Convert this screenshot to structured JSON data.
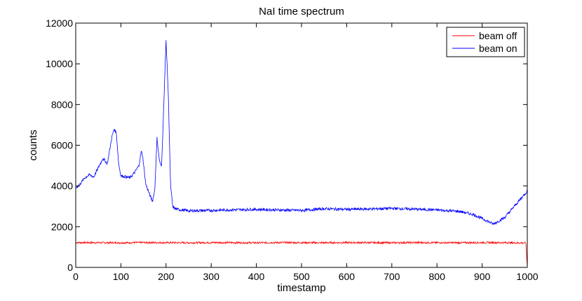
{
  "chart_data": {
    "type": "line",
    "title": "NaI time spectrum",
    "xlabel": "timestamp",
    "ylabel": "counts",
    "xlim": [
      0,
      1000
    ],
    "ylim": [
      0,
      12000
    ],
    "xticks": [
      0,
      100,
      200,
      300,
      400,
      500,
      600,
      700,
      800,
      900,
      1000
    ],
    "yticks": [
      0,
      2000,
      4000,
      6000,
      8000,
      10000,
      12000
    ],
    "xtick_labels": [
      "0",
      "100",
      "200",
      "300",
      "400",
      "500",
      "600",
      "700",
      "800",
      "900",
      "1000"
    ],
    "ytick_labels": [
      "0",
      "2000",
      "4000",
      "6000",
      "8000",
      "10000",
      "12000"
    ],
    "grid": false,
    "legend_position": "top-right",
    "series": [
      {
        "name": "beam off",
        "color": "#ff0000",
        "x": [
          0,
          50,
          100,
          150,
          200,
          250,
          300,
          350,
          400,
          450,
          500,
          550,
          600,
          650,
          700,
          750,
          800,
          850,
          900,
          950,
          997,
          1000
        ],
        "y": [
          1220,
          1215,
          1210,
          1220,
          1215,
          1210,
          1220,
          1215,
          1210,
          1220,
          1215,
          1210,
          1220,
          1215,
          1210,
          1220,
          1215,
          1210,
          1220,
          1215,
          1200,
          0
        ]
      },
      {
        "name": "beam on",
        "color": "#0000ff",
        "x": [
          0,
          10,
          20,
          30,
          40,
          50,
          60,
          70,
          80,
          85,
          90,
          95,
          100,
          110,
          120,
          130,
          140,
          145,
          148,
          155,
          165,
          170,
          175,
          180,
          185,
          190,
          195,
          200,
          205,
          210,
          215,
          225,
          250,
          300,
          350,
          400,
          450,
          500,
          550,
          600,
          650,
          700,
          750,
          800,
          850,
          880,
          900,
          925,
          950,
          975,
          1000,
          1001
        ],
        "y": [
          3900,
          4100,
          4400,
          4550,
          4450,
          4900,
          5350,
          5100,
          6400,
          6800,
          6600,
          5100,
          4500,
          4450,
          4400,
          4650,
          5000,
          5700,
          5500,
          4100,
          3500,
          3250,
          3800,
          6350,
          5300,
          4900,
          8000,
          11150,
          8500,
          4000,
          2950,
          2850,
          2780,
          2800,
          2830,
          2850,
          2820,
          2800,
          2880,
          2850,
          2870,
          2900,
          2860,
          2820,
          2750,
          2600,
          2400,
          2130,
          2450,
          3100,
          3750,
          0
        ]
      }
    ]
  }
}
